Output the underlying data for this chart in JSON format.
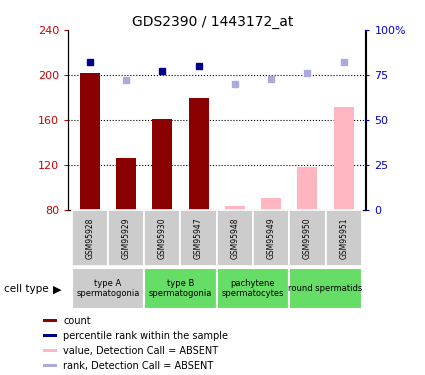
{
  "title": "GDS2390 / 1443172_at",
  "samples": [
    "GSM95928",
    "GSM95929",
    "GSM95930",
    "GSM95947",
    "GSM95948",
    "GSM95949",
    "GSM95950",
    "GSM95951"
  ],
  "bar_values_present": [
    202,
    126,
    161,
    180,
    null,
    null,
    null,
    null
  ],
  "bar_values_absent": [
    null,
    null,
    null,
    null,
    84,
    91,
    118,
    172
  ],
  "bar_color_present": "#8B0000",
  "bar_color_absent": "#FFB6C1",
  "rank_present": [
    82,
    null,
    77,
    80,
    null,
    null,
    null,
    null
  ],
  "rank_absent": [
    null,
    72,
    null,
    null,
    70,
    73,
    76,
    82
  ],
  "rank_present_color": "#00008B",
  "rank_absent_color": "#AAAADD",
  "ylim_left": [
    80,
    240
  ],
  "ylim_right": [
    0,
    100
  ],
  "yticks_left": [
    80,
    120,
    160,
    200,
    240
  ],
  "yticks_right": [
    0,
    25,
    50,
    75,
    100
  ],
  "ytick_right_labels": [
    "0",
    "25",
    "50",
    "75",
    "100%"
  ],
  "hgrid_values": [
    120,
    160,
    200
  ],
  "cell_type_groups": [
    {
      "label": "type A\nspermatogonia",
      "start": 0,
      "end": 1,
      "color": "#CCCCCC"
    },
    {
      "label": "type B\nspermatogonia",
      "start": 2,
      "end": 3,
      "color": "#66DD66"
    },
    {
      "label": "pachytene\nspermatocytes",
      "start": 4,
      "end": 5,
      "color": "#66DD66"
    },
    {
      "label": "round spermatids",
      "start": 6,
      "end": 7,
      "color": "#66DD66"
    }
  ],
  "legend_items": [
    {
      "label": "count",
      "color": "#8B0000"
    },
    {
      "label": "percentile rank within the sample",
      "color": "#00008B"
    },
    {
      "label": "value, Detection Call = ABSENT",
      "color": "#FFB6C1"
    },
    {
      "label": "rank, Detection Call = ABSENT",
      "color": "#AAAADD"
    }
  ],
  "ylabel_left_color": "#CC0000",
  "ylabel_right_color": "#0000CC",
  "fig_width": 4.25,
  "fig_height": 3.75,
  "fig_dpi": 100
}
